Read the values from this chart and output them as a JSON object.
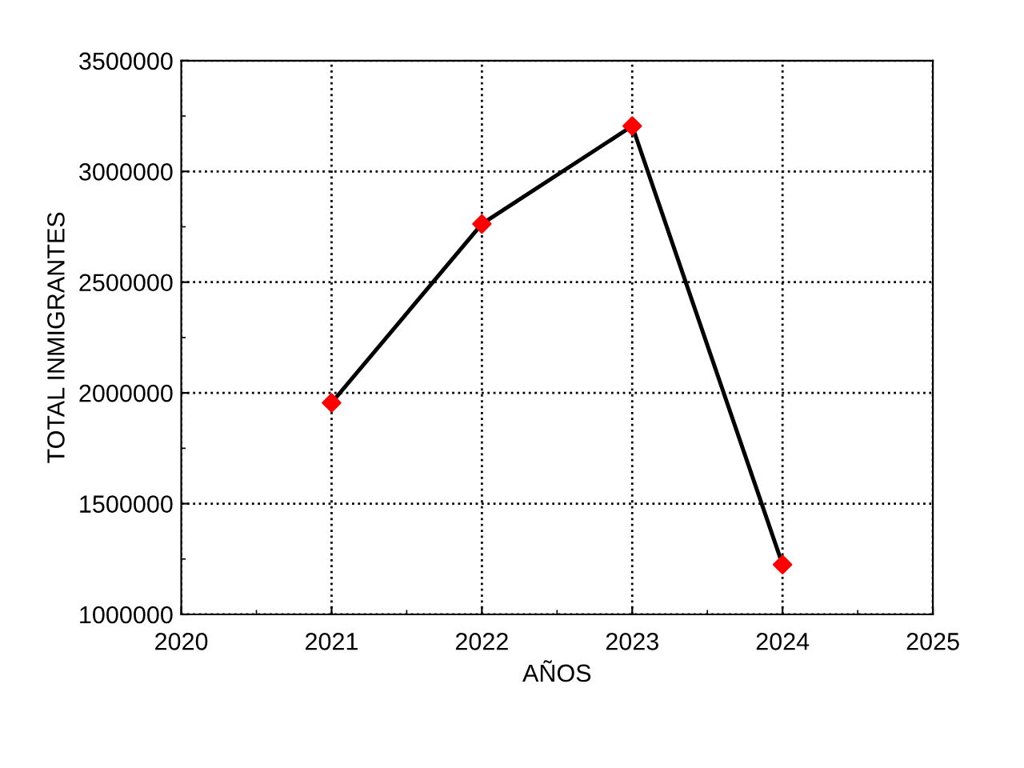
{
  "chart_data": {
    "type": "line",
    "xlabel": "AÑOS",
    "ylabel": "TOTAL INMIGRANTES",
    "x": [
      2021,
      2022,
      2023,
      2024
    ],
    "series": [
      {
        "color": "#000000",
        "colors": [
          "#ff0000",
          "#ff0000",
          "#ff0000",
          "#ff0000"
        ],
        "values": [
          1955000,
          2763000,
          3205000,
          1225000
        ]
      }
    ],
    "xlim": [
      2020,
      2025
    ],
    "xticks": [
      2020,
      2021,
      2022,
      2023,
      2024,
      2025
    ],
    "ylim": [
      1000000,
      3500000
    ],
    "yticks": [
      1000000,
      1500000,
      2000000,
      2500000,
      3000000,
      3500000
    ],
    "grid": true,
    "marker": "diamond",
    "line_style": "solid"
  }
}
